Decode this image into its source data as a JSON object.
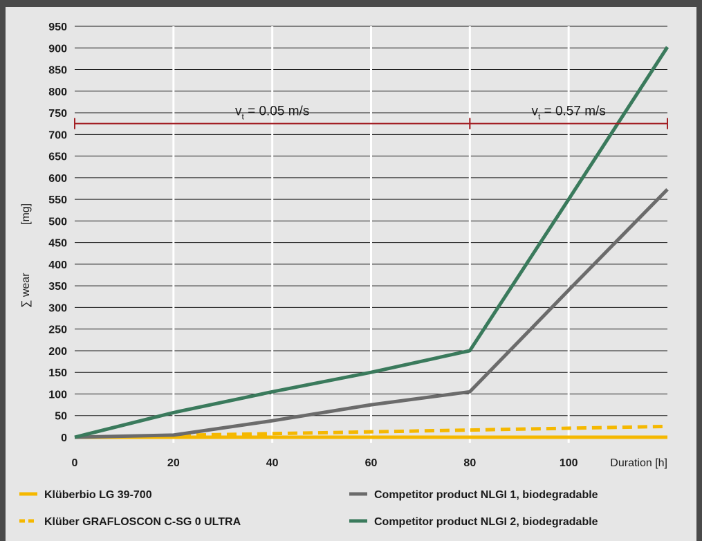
{
  "chart_data": {
    "type": "line",
    "xlabel": "Duration [h]",
    "ylabel": "∑ wear",
    "ylabel_unit": "[mg]",
    "xlim": [
      0,
      120
    ],
    "ylim": [
      0,
      950
    ],
    "x_ticks": [
      0,
      20,
      40,
      60,
      80,
      100
    ],
    "y_ticks": [
      0,
      50,
      100,
      150,
      200,
      250,
      300,
      350,
      400,
      450,
      500,
      550,
      600,
      650,
      700,
      750,
      800,
      850,
      900,
      950
    ],
    "grid": "vertical white lines, horizontal black lines",
    "legend_position": "bottom",
    "annotations": [
      {
        "text_main": "v",
        "text_sub": "t",
        "text_rest": " = 0.05 m/s",
        "x_start": 0,
        "x_end": 80,
        "y": 725
      },
      {
        "text_main": "v",
        "text_sub": "t",
        "text_rest": " = 0.57 m/s",
        "x_start": 80,
        "x_end": 120,
        "y": 725
      }
    ],
    "annotation_color": "#a31f24",
    "series": [
      {
        "name": "Klüberbio LG 39-700",
        "color": "#f5b800",
        "style": "solid",
        "x": [
          0,
          20,
          40,
          60,
          80,
          100,
          120
        ],
        "y": [
          0,
          0,
          0,
          0,
          0,
          0,
          0
        ]
      },
      {
        "name": "Klüber GRAFLOSCON C-SG 0 ULTRA",
        "color": "#f5b800",
        "style": "dashed",
        "x": [
          0,
          120
        ],
        "y": [
          0,
          25
        ]
      },
      {
        "name": "Competitor product NLGI 1, biodegradable",
        "color": "#6b6b6b",
        "style": "solid",
        "x": [
          0,
          20,
          40,
          60,
          80,
          100,
          120
        ],
        "y": [
          0,
          5,
          38,
          75,
          105,
          340,
          573
        ]
      },
      {
        "name": "Competitor product NLGI 2, biodegradable",
        "color": "#3a7a5c",
        "style": "solid",
        "x": [
          0,
          20,
          40,
          60,
          80,
          100,
          120
        ],
        "y": [
          0,
          57,
          105,
          150,
          200,
          550,
          902
        ]
      }
    ]
  }
}
